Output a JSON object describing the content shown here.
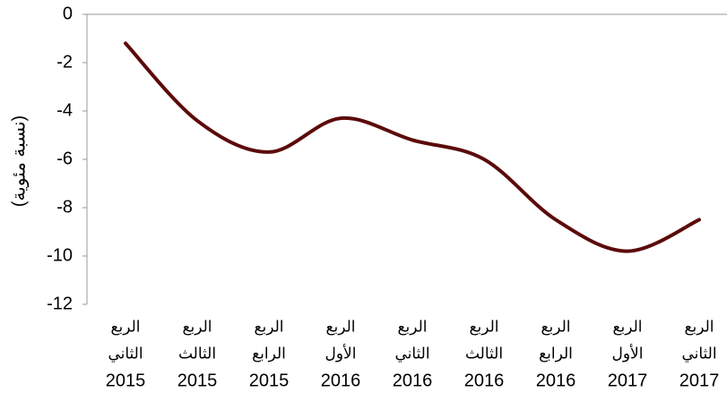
{
  "chart_data": {
    "type": "line",
    "y_label": "(نسبة مئوية)",
    "categories": [
      [
        "الربع",
        "الثاني",
        "2015"
      ],
      [
        "الربع",
        "الثالث",
        "2015"
      ],
      [
        "الربع",
        "الرابع",
        "2015"
      ],
      [
        "الربع",
        "الأول",
        "2016"
      ],
      [
        "الربع",
        "الثاني",
        "2016"
      ],
      [
        "الربع",
        "الثالث",
        "2016"
      ],
      [
        "الربع",
        "الرابع",
        "2016"
      ],
      [
        "الربع",
        "الأول",
        "2017"
      ],
      [
        "الربع",
        "الثاني",
        "2017"
      ]
    ],
    "series": [
      {
        "color": "#5c0a0a",
        "values": [
          -1.2,
          -4.4,
          -5.7,
          -4.3,
          -5.2,
          -6.0,
          -8.5,
          -9.8,
          -8.5
        ]
      }
    ],
    "ylim": [
      -12,
      0
    ],
    "yticks": [
      0,
      -2,
      -4,
      -6,
      -8,
      -10,
      -12
    ],
    "smooth": true
  }
}
